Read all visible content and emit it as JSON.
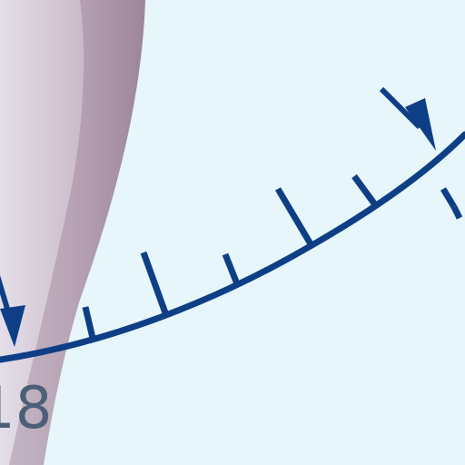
{
  "scale": {
    "left_number": "18",
    "right_number": ""
  },
  "colors": {
    "background": "#e6f6fa",
    "scale_line": "#0e3f86",
    "band": "#9b7f95",
    "number_text": "#4b5f76"
  },
  "icons": {
    "left_pointer": "arrow-down-right-icon",
    "right_pointer": "arrow-down-right-icon"
  }
}
